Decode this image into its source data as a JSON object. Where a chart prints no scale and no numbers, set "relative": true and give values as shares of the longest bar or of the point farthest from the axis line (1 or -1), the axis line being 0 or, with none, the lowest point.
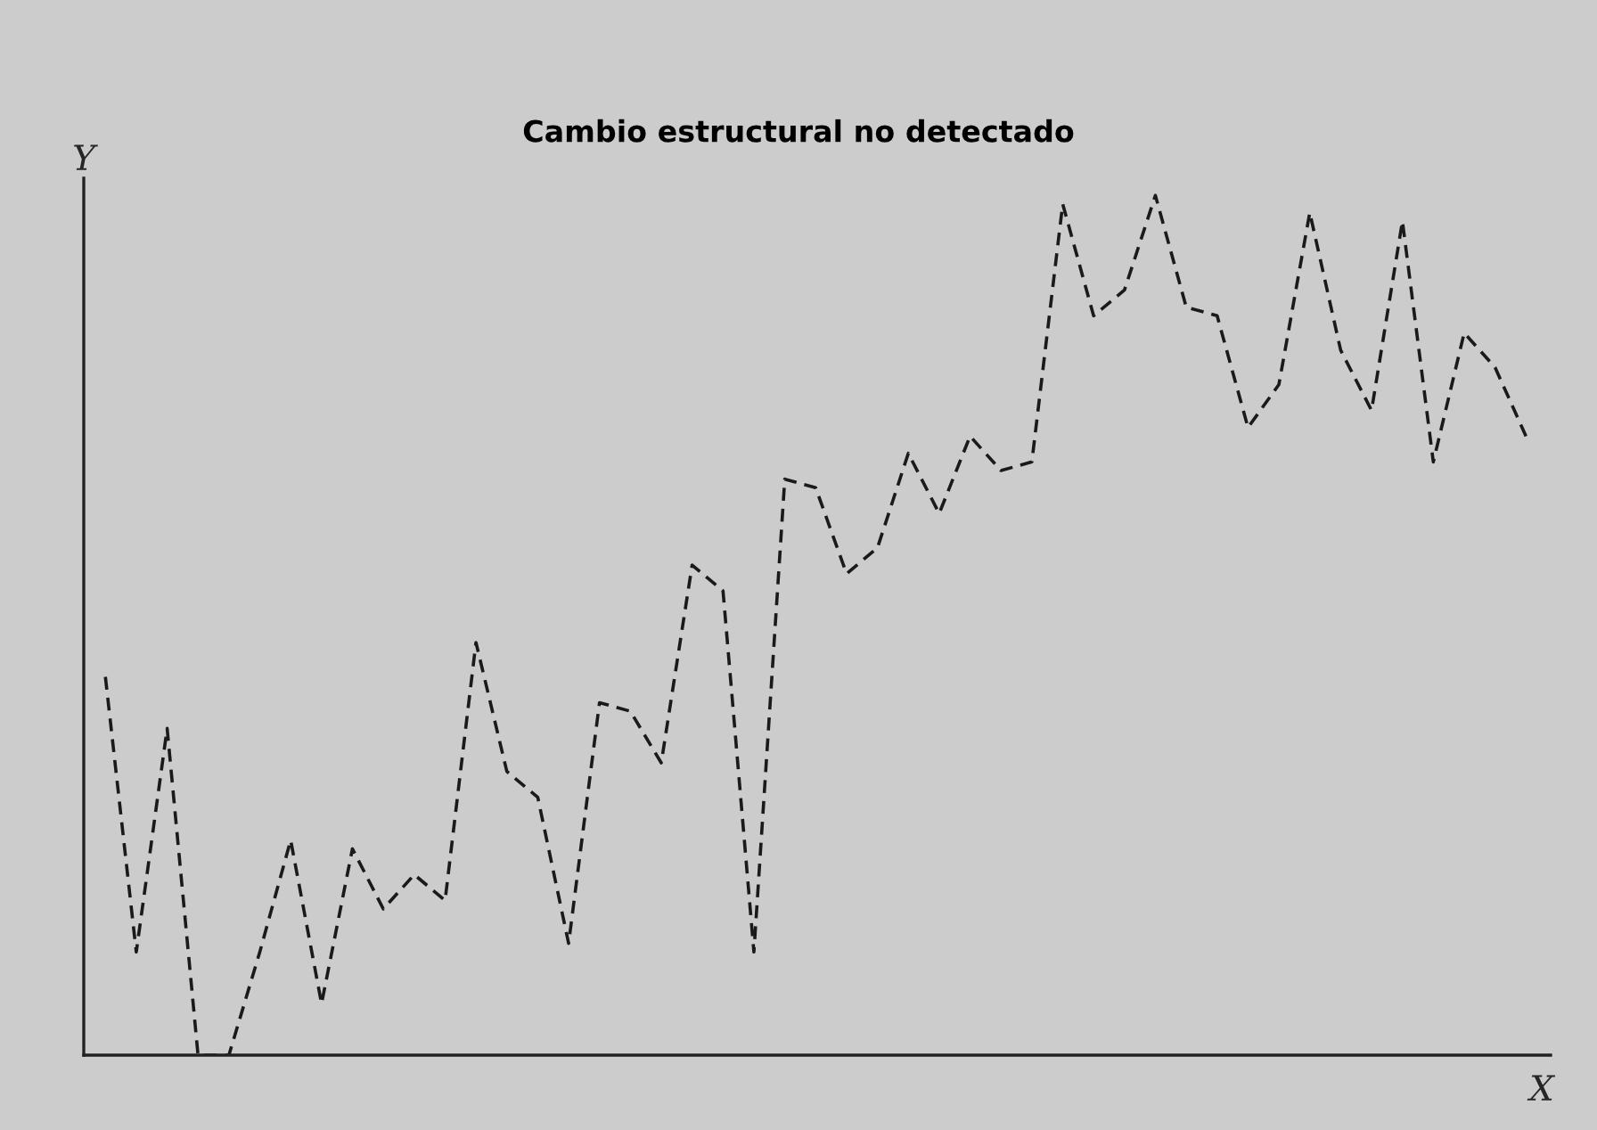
{
  "chart_data": {
    "type": "line",
    "title": "Cambio estructural no detectado",
    "xlabel": "X",
    "ylabel": "Y",
    "relative": true,
    "line_style": "dashed",
    "marker": "none",
    "categories": [
      null,
      null,
      null,
      null,
      null,
      null,
      null,
      null,
      null,
      null,
      null,
      null,
      null,
      null,
      null,
      null,
      null,
      null,
      null,
      null,
      null,
      null,
      null,
      null,
      null,
      null,
      null,
      null,
      null,
      null,
      null,
      null,
      null,
      null,
      null,
      null,
      null,
      null,
      null,
      null,
      null,
      null,
      null,
      null,
      null,
      null,
      null
    ],
    "series": [
      {
        "color": "#1a1a1a",
        "values": [
          0.44,
          0.12,
          0.38,
          0.0,
          0.0,
          0.12,
          0.25,
          0.06,
          0.24,
          0.17,
          0.21,
          0.18,
          0.48,
          0.33,
          0.3,
          0.13,
          0.41,
          0.4,
          0.34,
          0.57,
          0.54,
          0.12,
          0.67,
          0.66,
          0.56,
          0.59,
          0.7,
          0.63,
          0.72,
          0.68,
          0.69,
          0.99,
          0.86,
          0.89,
          1.0,
          0.87,
          0.86,
          0.73,
          0.78,
          0.98,
          0.82,
          0.75,
          0.97,
          0.69,
          0.84,
          0.8,
          0.72
        ]
      }
    ]
  }
}
